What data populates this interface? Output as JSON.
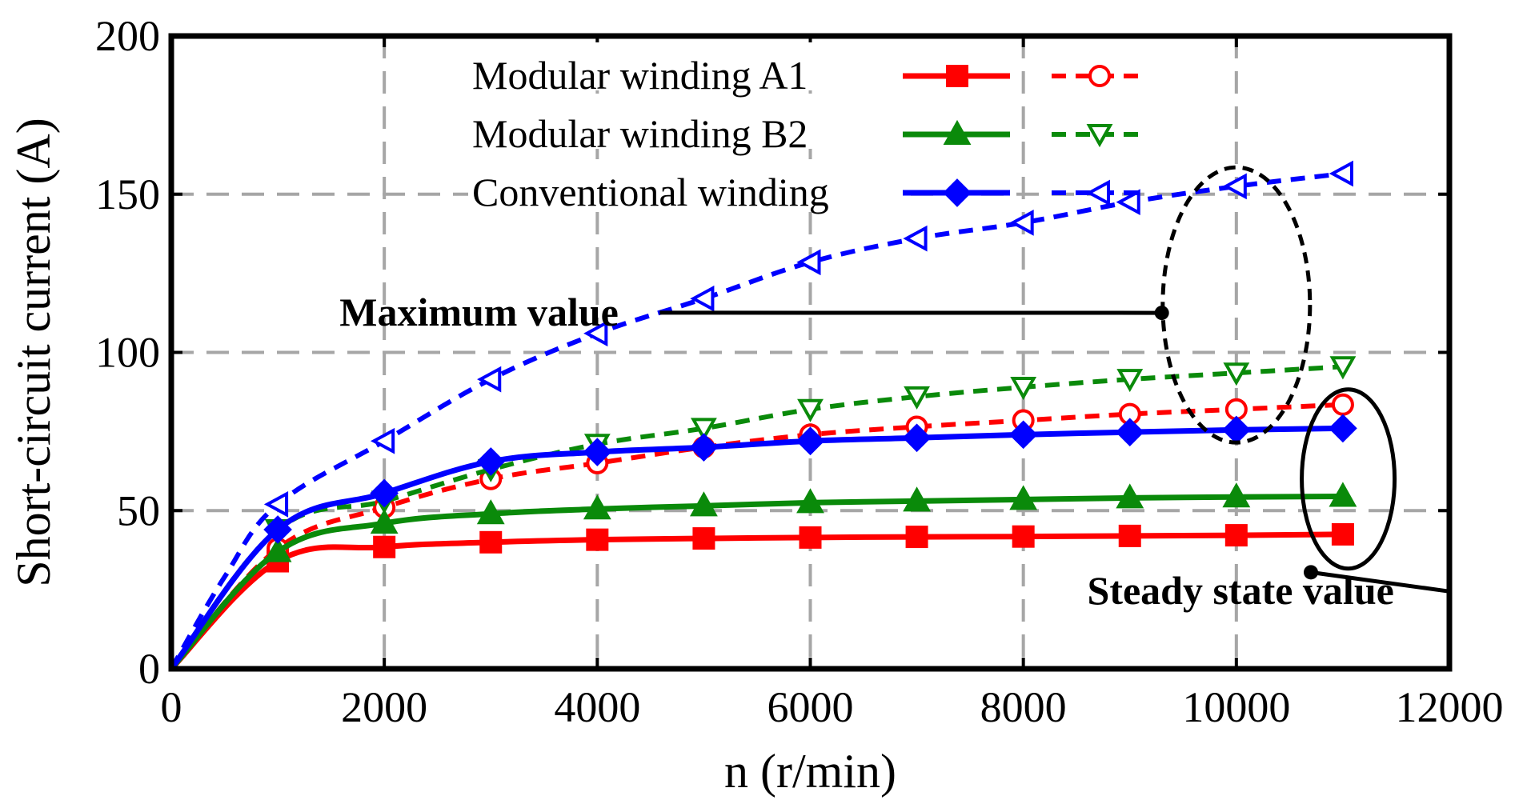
{
  "chart_data": {
    "type": "line",
    "title": "",
    "xlabel": "n (r/min)",
    "ylabel": "Short-circuit current (A)",
    "xlim": [
      0,
      12000
    ],
    "ylim": [
      0,
      200
    ],
    "xticks": [
      0,
      2000,
      4000,
      6000,
      8000,
      10000,
      12000
    ],
    "yticks": [
      0,
      50,
      100,
      150,
      200
    ],
    "grid": true,
    "legend_position": "top-center",
    "legend": [
      {
        "label": "Modular winding A1",
        "color": "#ff0000",
        "marker": "square",
        "marker_max": "circle-open"
      },
      {
        "label": "Modular winding B2",
        "color": "#0a8a0a",
        "marker": "triangle-up",
        "marker_max": "triangle-down-open"
      },
      {
        "label": "Conventional winding",
        "color": "#0000ff",
        "marker": "diamond",
        "marker_max": "triangle-left-open"
      }
    ],
    "series": [
      {
        "name": "Modular winding A1 (steady state)",
        "color": "#ff0000",
        "style": "solid",
        "marker": "square",
        "x": [
          0,
          1000,
          2000,
          3000,
          4000,
          5000,
          6000,
          7000,
          8000,
          9000,
          10000,
          11000
        ],
        "y": [
          0,
          34,
          38.5,
          40,
          40.8,
          41.2,
          41.5,
          41.7,
          41.8,
          42,
          42.2,
          42.5
        ]
      },
      {
        "name": "Modular winding A1 (maximum)",
        "color": "#ff0000",
        "style": "dashed",
        "marker": "circle-open",
        "x": [
          0,
          1000,
          2000,
          3000,
          4000,
          5000,
          6000,
          7000,
          8000,
          9000,
          10000,
          11000
        ],
        "y": [
          0,
          38,
          51,
          60,
          65,
          70,
          74,
          76.5,
          78.5,
          80.5,
          82,
          83.5
        ]
      },
      {
        "name": "Modular winding B2 (steady state)",
        "color": "#0a8a0a",
        "style": "solid",
        "marker": "triangle-up",
        "x": [
          0,
          1000,
          2000,
          3000,
          4000,
          5000,
          6000,
          7000,
          8000,
          9000,
          10000,
          11000
        ],
        "y": [
          0,
          37,
          46,
          49,
          50.5,
          51.5,
          52.5,
          53,
          53.5,
          54,
          54.3,
          54.5
        ]
      },
      {
        "name": "Modular winding B2 (maximum)",
        "color": "#0a8a0a",
        "style": "dashed",
        "marker": "triangle-down-open",
        "x": [
          0,
          1000,
          2000,
          3000,
          4000,
          5000,
          6000,
          7000,
          8000,
          9000,
          10000,
          11000
        ],
        "y": [
          0,
          44,
          53,
          63,
          71,
          76,
          82,
          86,
          89,
          91.5,
          93.5,
          95.5
        ]
      },
      {
        "name": "Conventional winding (steady state)",
        "color": "#0000ff",
        "style": "solid",
        "marker": "diamond",
        "x": [
          0,
          1000,
          2000,
          3000,
          4000,
          5000,
          6000,
          7000,
          8000,
          9000,
          10000,
          11000
        ],
        "y": [
          0,
          44,
          55.5,
          65.5,
          68.5,
          70,
          72,
          73,
          74,
          74.8,
          75.5,
          76
        ]
      },
      {
        "name": "Conventional winding (maximum)",
        "color": "#0000ff",
        "style": "dashed",
        "marker": "triangle-left-open",
        "x": [
          0,
          500,
          1000,
          2000,
          3000,
          4000,
          5000,
          6000,
          7000,
          8000,
          9000,
          10000,
          11000
        ],
        "y": [
          0,
          29,
          52,
          72,
          91.5,
          106,
          117,
          128.5,
          136,
          141,
          147.5,
          152.5,
          156.5
        ]
      }
    ],
    "annotations": [
      {
        "text": "Maximum value",
        "x": 1580,
        "y": 108.5,
        "pointer_to": [
          9300,
          112.5
        ]
      },
      {
        "text": "Steady state value",
        "x": 8600,
        "y": 20.5,
        "pointer_to": [
          10700,
          30.5
        ]
      }
    ]
  }
}
